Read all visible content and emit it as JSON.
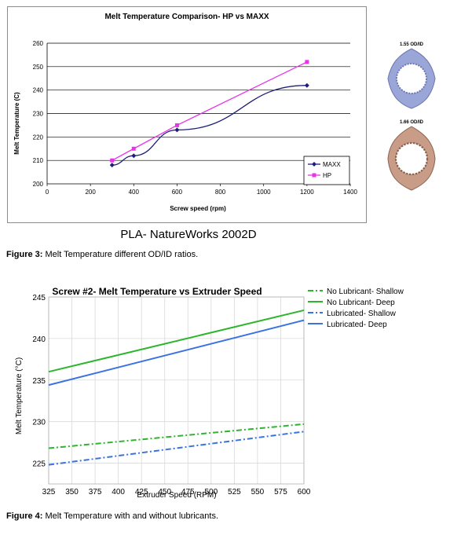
{
  "figures": {
    "fig3": {
      "caption_label": "Figure 3:",
      "caption_text": " Melt Temperature different OD/ID ratios.",
      "subtitle": "PLA- NatureWorks 2002D",
      "side_labels": [
        "1.55 OD/ID",
        "1.66 OD/ID"
      ]
    },
    "fig4": {
      "caption_label": "Figure 4:",
      "caption_text": " Melt Temperature with and without lubricants."
    }
  },
  "colors": {
    "maxx": "#1f1f7a",
    "hp": "#e833e8",
    "green": "#2db52d",
    "blue": "#3a73e0",
    "ring_blue": "#9aa6d8",
    "ring_brown": "#c89c86"
  },
  "chart_data": [
    {
      "type": "line",
      "title": "Melt Temperature Comparison- HP vs MAXX",
      "xlabel": "Screw speed (rpm)",
      "ylabel": "Melt Temperature (C)",
      "xlim": [
        0,
        1400
      ],
      "ylim": [
        200,
        260
      ],
      "xticks": [
        0,
        200,
        400,
        600,
        800,
        1000,
        1200,
        1400
      ],
      "yticks": [
        200,
        210,
        220,
        230,
        240,
        250,
        260
      ],
      "grid": "horizontal",
      "legend": "bottom-right",
      "series": [
        {
          "name": "MAXX",
          "x": [
            300,
            400,
            600,
            1200
          ],
          "y": [
            208,
            212,
            223,
            242
          ],
          "color": "#1f1f7a",
          "marker": "diamond"
        },
        {
          "name": "HP",
          "x": [
            300,
            400,
            600,
            1200
          ],
          "y": [
            210,
            215,
            225,
            252
          ],
          "color": "#e833e8",
          "marker": "square"
        }
      ]
    },
    {
      "type": "line",
      "title": "Screw #2- Melt Temperature vs Extruder Speed",
      "xlabel": "Extruder Speed (RPM)",
      "ylabel": "Melt Temperature (°C)",
      "xlim": [
        325,
        600
      ],
      "ylim": [
        222.5,
        245
      ],
      "xticks": [
        325,
        350,
        375,
        400,
        425,
        450,
        475,
        500,
        525,
        550,
        575,
        600
      ],
      "yticks": [
        225,
        230,
        235,
        240,
        245
      ],
      "grid": "both",
      "legend": "top-right",
      "series": [
        {
          "name": "No Lubricant- Shallow",
          "x": [
            325,
            600
          ],
          "y": [
            226.8,
            229.7
          ],
          "color": "#2db52d",
          "dash": "dashdot"
        },
        {
          "name": "No Lubricant- Deep",
          "x": [
            325,
            600
          ],
          "y": [
            236.0,
            243.4
          ],
          "color": "#2db52d",
          "dash": "solid"
        },
        {
          "name": "Lubricated- Shallow",
          "x": [
            325,
            600
          ],
          "y": [
            224.8,
            228.8
          ],
          "color": "#3a73e0",
          "dash": "dashdot"
        },
        {
          "name": "Lubricated- Deep",
          "x": [
            325,
            600
          ],
          "y": [
            234.4,
            242.2
          ],
          "color": "#3a73e0",
          "dash": "solid"
        }
      ]
    }
  ]
}
